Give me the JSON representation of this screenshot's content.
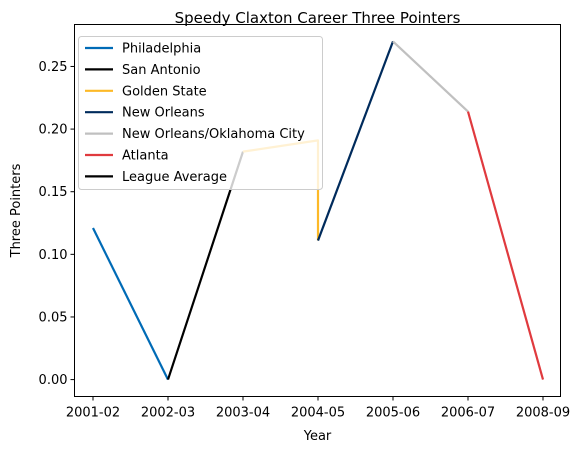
{
  "chart_data": {
    "type": "line",
    "title": "Speedy Claxton Career Three Pointers",
    "xlabel": "Year",
    "ylabel": "Three Pointers",
    "categories": [
      "2001-02",
      "2002-03",
      "2003-04",
      "2004-05",
      "2005-06",
      "2006-07",
      "2008-09"
    ],
    "ylim": [
      -0.0135,
      0.2835
    ],
    "yticks": [
      0.0,
      0.05,
      0.1,
      0.15,
      0.2,
      0.25
    ],
    "ytick_labels": [
      "0.00",
      "0.05",
      "0.10",
      "0.15",
      "0.20",
      "0.25"
    ],
    "grid": false,
    "legend_position": "top-left",
    "series": [
      {
        "name": "Philadelphia",
        "color": "#006bb6",
        "points": [
          {
            "x": "2001-02",
            "y": 0.121
          },
          {
            "x": "2002-03",
            "y": 0.0
          }
        ]
      },
      {
        "name": "San Antonio",
        "color": "#000000",
        "points": [
          {
            "x": "2002-03",
            "y": 0.0
          },
          {
            "x": "2003-04",
            "y": 0.182
          }
        ]
      },
      {
        "name": "Golden State",
        "color": "#fdb927",
        "points": [
          {
            "x": "2003-04",
            "y": 0.182
          },
          {
            "x": "2004-05",
            "y": 0.191
          },
          {
            "x": "2004-05",
            "y": 0.111
          }
        ]
      },
      {
        "name": "New Orleans",
        "color": "#002b5c",
        "points": [
          {
            "x": "2004-05",
            "y": 0.111
          },
          {
            "x": "2005-06",
            "y": 0.27
          }
        ]
      },
      {
        "name": "New Orleans/Oklahoma City",
        "color": "#c0c0c0",
        "points": [
          {
            "x": "2005-06",
            "y": 0.27
          },
          {
            "x": "2006-07",
            "y": 0.214
          }
        ]
      },
      {
        "name": "Atlanta",
        "color": "#e03a3e",
        "points": [
          {
            "x": "2006-07",
            "y": 0.214
          },
          {
            "x": "2008-09",
            "y": 0.0
          }
        ]
      },
      {
        "name": "League Average",
        "color": "#000000",
        "points": []
      }
    ]
  }
}
